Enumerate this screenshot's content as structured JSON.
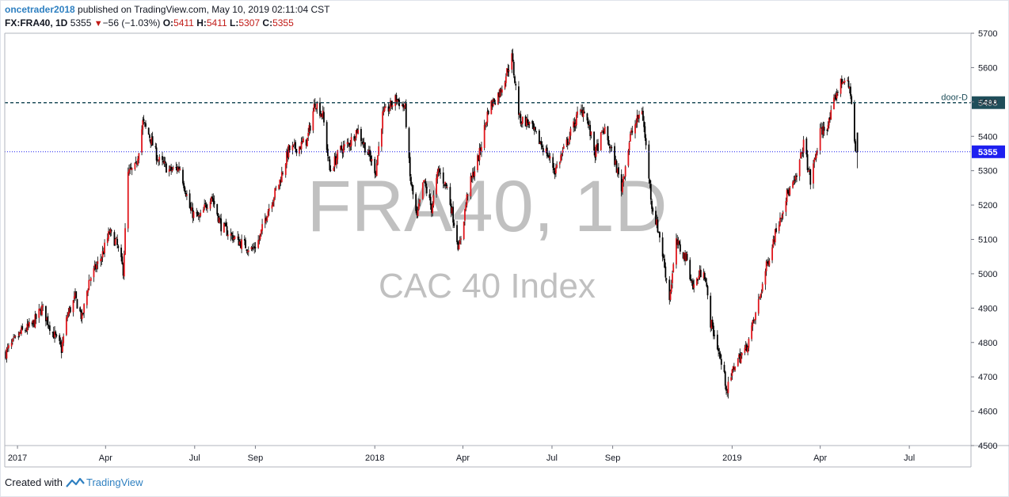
{
  "header": {
    "username": "oncetrader2018",
    "published": " published on TradingView.com, May 10, 2019 02:11:04 CST",
    "symbol": "FX:FRA40, 1D",
    "last": "5355",
    "change_arrow": "▼",
    "change": "−56 (−1.03%)",
    "o_label": "O:",
    "o_value": "5411",
    "h_label": "H:",
    "h_value": "5411",
    "l_label": "L:",
    "l_value": "5307",
    "c_label": "C:",
    "c_value": "5355"
  },
  "watermark": {
    "symbol": "FRA40, 1D",
    "name": "CAC 40 Index"
  },
  "footer": {
    "prefix": "Created with",
    "brand": "TradingView"
  },
  "chart_data": {
    "type": "candlestick",
    "symbol": "FX:FRA40",
    "interval": "1D",
    "ylim": [
      4500,
      5700
    ],
    "y_ticks": [
      4500,
      4600,
      4700,
      4800,
      4900,
      5000,
      5100,
      5200,
      5300,
      5400,
      5500,
      5600,
      5700
    ],
    "x_ticks": [
      {
        "label": "2017",
        "date": "2017-01-01"
      },
      {
        "label": "Apr",
        "date": "2017-04-01"
      },
      {
        "label": "Jul",
        "date": "2017-07-01"
      },
      {
        "label": "Sep",
        "date": "2017-09-01"
      },
      {
        "label": "2018",
        "date": "2018-01-01"
      },
      {
        "label": "Apr",
        "date": "2018-04-01"
      },
      {
        "label": "Jul",
        "date": "2018-07-01"
      },
      {
        "label": "Sep",
        "date": "2018-09-01"
      },
      {
        "label": "2019",
        "date": "2019-01-01"
      },
      {
        "label": "Apr",
        "date": "2019-04-01"
      },
      {
        "label": "Jul",
        "date": "2019-07-01"
      }
    ],
    "x_range": [
      "2016-12-19",
      "2019-09-02"
    ],
    "up_color": "#e0161c",
    "down_color": "#000000",
    "horizontal_lines": [
      {
        "name": "door-D",
        "value": 5498,
        "label": "5498",
        "color": "#1f4e5a",
        "style": "dashed"
      },
      {
        "name": "last",
        "value": 5355,
        "label": "5355",
        "color": "#1d1ff0",
        "style": "dotted"
      }
    ],
    "close_path": [
      [
        "2016-12-20",
        4770
      ],
      [
        "2017-01-05",
        4830
      ],
      [
        "2017-01-16",
        4850
      ],
      [
        "2017-01-26",
        4900
      ],
      [
        "2017-02-06",
        4830
      ],
      [
        "2017-02-15",
        4780
      ],
      [
        "2017-02-21",
        4880
      ],
      [
        "2017-03-01",
        4930
      ],
      [
        "2017-03-08",
        4870
      ],
      [
        "2017-03-15",
        4980
      ],
      [
        "2017-03-28",
        5050
      ],
      [
        "2017-04-05",
        5120
      ],
      [
        "2017-04-12",
        5090
      ],
      [
        "2017-04-19",
        5010
      ],
      [
        "2017-04-24",
        5290
      ],
      [
        "2017-05-02",
        5310
      ],
      [
        "2017-05-09",
        5440
      ],
      [
        "2017-05-16",
        5400
      ],
      [
        "2017-05-25",
        5330
      ],
      [
        "2017-06-06",
        5300
      ],
      [
        "2017-06-16",
        5310
      ],
      [
        "2017-06-27",
        5180
      ],
      [
        "2017-07-06",
        5160
      ],
      [
        "2017-07-18",
        5230
      ],
      [
        "2017-07-28",
        5140
      ],
      [
        "2017-08-08",
        5110
      ],
      [
        "2017-08-17",
        5090
      ],
      [
        "2017-08-29",
        5070
      ],
      [
        "2017-09-05",
        5100
      ],
      [
        "2017-09-13",
        5180
      ],
      [
        "2017-09-26",
        5270
      ],
      [
        "2017-10-05",
        5360
      ],
      [
        "2017-10-16",
        5370
      ],
      [
        "2017-10-24",
        5390
      ],
      [
        "2017-11-01",
        5500
      ],
      [
        "2017-11-09",
        5460
      ],
      [
        "2017-11-16",
        5300
      ],
      [
        "2017-11-27",
        5360
      ],
      [
        "2017-12-06",
        5380
      ],
      [
        "2017-12-14",
        5420
      ],
      [
        "2017-12-22",
        5370
      ],
      [
        "2018-01-02",
        5300
      ],
      [
        "2018-01-09",
        5460
      ],
      [
        "2018-01-23",
        5510
      ],
      [
        "2018-02-01",
        5480
      ],
      [
        "2018-02-06",
        5280
      ],
      [
        "2018-02-13",
        5160
      ],
      [
        "2018-02-20",
        5270
      ],
      [
        "2018-02-28",
        5190
      ],
      [
        "2018-03-07",
        5300
      ],
      [
        "2018-03-16",
        5250
      ],
      [
        "2018-03-23",
        5150
      ],
      [
        "2018-03-28",
        5070
      ],
      [
        "2018-04-06",
        5240
      ],
      [
        "2018-04-18",
        5350
      ],
      [
        "2018-04-27",
        5480
      ],
      [
        "2018-05-09",
        5530
      ],
      [
        "2018-05-21",
        5630
      ],
      [
        "2018-05-29",
        5450
      ],
      [
        "2018-06-07",
        5440
      ],
      [
        "2018-06-15",
        5400
      ],
      [
        "2018-06-26",
        5350
      ],
      [
        "2018-07-04",
        5300
      ],
      [
        "2018-07-16",
        5380
      ],
      [
        "2018-07-27",
        5460
      ],
      [
        "2018-08-03",
        5480
      ],
      [
        "2018-08-14",
        5350
      ],
      [
        "2018-08-23",
        5420
      ],
      [
        "2018-09-03",
        5330
      ],
      [
        "2018-09-10",
        5250
      ],
      [
        "2018-09-19",
        5400
      ],
      [
        "2018-10-01",
        5480
      ],
      [
        "2018-10-11",
        5200
      ],
      [
        "2018-10-19",
        5110
      ],
      [
        "2018-10-29",
        4930
      ],
      [
        "2018-11-05",
        5090
      ],
      [
        "2018-11-16",
        5040
      ],
      [
        "2018-11-22",
        4960
      ],
      [
        "2018-12-03",
        5020
      ],
      [
        "2018-12-10",
        4860
      ],
      [
        "2018-12-17",
        4790
      ],
      [
        "2018-12-27",
        4660
      ],
      [
        "2019-01-04",
        4740
      ],
      [
        "2019-01-15",
        4780
      ],
      [
        "2019-01-25",
        4880
      ],
      [
        "2019-02-05",
        5020
      ],
      [
        "2019-02-15",
        5130
      ],
      [
        "2019-02-26",
        5230
      ],
      [
        "2019-03-07",
        5270
      ],
      [
        "2019-03-15",
        5380
      ],
      [
        "2019-03-22",
        5270
      ],
      [
        "2019-04-01",
        5410
      ],
      [
        "2019-04-10",
        5440
      ],
      [
        "2019-04-18",
        5530
      ],
      [
        "2019-04-25",
        5570
      ],
      [
        "2019-05-02",
        5530
      ],
      [
        "2019-05-07",
        5350
      ],
      [
        "2019-05-09",
        5355
      ]
    ]
  }
}
